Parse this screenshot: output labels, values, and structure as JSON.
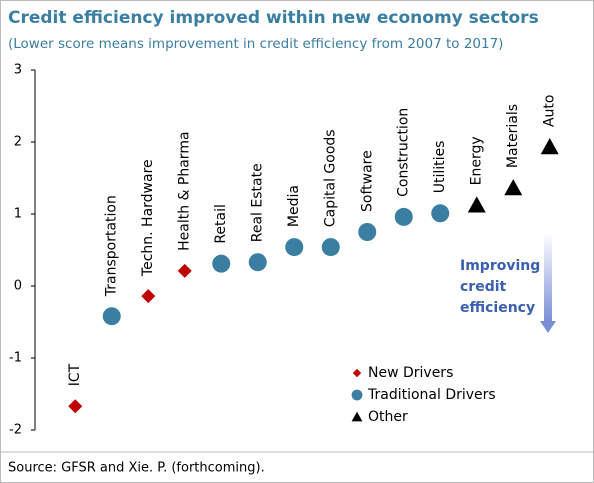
{
  "chart_data": {
    "type": "scatter",
    "title": "Credit efficiency improved within new economy sectors",
    "subtitle": "(Lower score means improvement in credit efficiency from 2007 to 2017)",
    "categories": [
      "ICT",
      "Transportation",
      "Techn. Hardware",
      "Health & Pharma",
      "Retail",
      "Real Estate",
      "Media",
      "Capital Goods",
      "Software",
      "Construction",
      "Utilities",
      "Energy",
      "Materials",
      "Auto"
    ],
    "series": [
      {
        "name": "New Drivers",
        "color": "#c00000",
        "marker": "diamond",
        "values": [
          -1.67,
          null,
          -0.14,
          0.21,
          null,
          null,
          null,
          null,
          null,
          null,
          null,
          null,
          null,
          null
        ]
      },
      {
        "name": "Traditional Drivers",
        "color": "#3a7ea1",
        "marker": "circle",
        "values": [
          null,
          -0.42,
          null,
          null,
          0.31,
          0.33,
          0.54,
          0.54,
          0.75,
          0.96,
          1.01,
          null,
          null,
          null
        ]
      },
      {
        "name": "Other",
        "color": "#000000",
        "marker": "triangle",
        "values": [
          null,
          null,
          null,
          null,
          null,
          null,
          null,
          null,
          null,
          null,
          null,
          1.12,
          1.36,
          1.93
        ]
      }
    ],
    "ylim": [
      -2,
      3
    ],
    "yticks": [
      -2,
      -1,
      0,
      1,
      2,
      3
    ],
    "annotation": [
      "Improving",
      "credit",
      "efficiency"
    ],
    "source": "Source: GFSR and Xie. P. (forthcoming)."
  }
}
